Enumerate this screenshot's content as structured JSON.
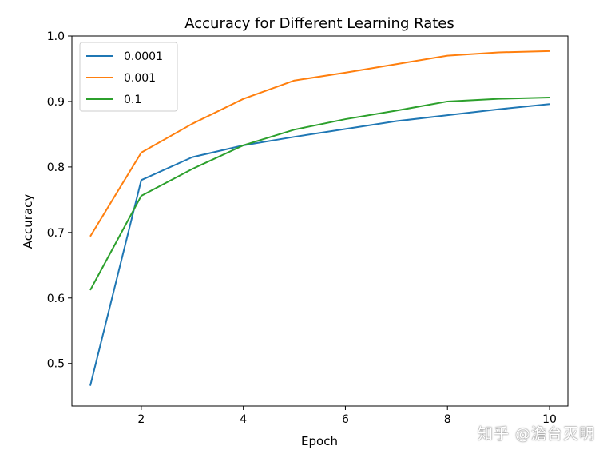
{
  "chart_data": {
    "type": "line",
    "title": "Accuracy for Different Learning Rates",
    "xlabel": "Epoch",
    "ylabel": "Accuracy",
    "xlim": [
      0.64,
      10.36
    ],
    "ylim": [
      0.435,
      1.0
    ],
    "x": [
      1,
      2,
      3,
      4,
      5,
      6,
      7,
      8,
      9,
      10
    ],
    "xticks": [
      2,
      4,
      6,
      8,
      10
    ],
    "xtick_labels": [
      "2",
      "4",
      "6",
      "8",
      "10"
    ],
    "yticks": [
      0.5,
      0.6,
      0.7,
      0.8,
      0.9,
      1.0
    ],
    "ytick_labels": [
      "0.5",
      "0.6",
      "0.7",
      "0.8",
      "0.9",
      "1.0"
    ],
    "grid": false,
    "legend_position": "top-left",
    "series": [
      {
        "name": "0.0001",
        "color": "#1f77b4",
        "values": [
          0.466,
          0.78,
          0.815,
          0.833,
          0.846,
          0.858,
          0.87,
          0.879,
          0.888,
          0.896
        ]
      },
      {
        "name": "0.001",
        "color": "#ff7f0e",
        "values": [
          0.694,
          0.822,
          0.866,
          0.904,
          0.932,
          0.944,
          0.957,
          0.97,
          0.975,
          0.977
        ]
      },
      {
        "name": "0.1",
        "color": "#2ca02c",
        "values": [
          0.612,
          0.756,
          0.797,
          0.833,
          0.857,
          0.873,
          0.886,
          0.9,
          0.904,
          0.906
        ]
      }
    ]
  },
  "watermark": "知乎 @澹台灭明"
}
